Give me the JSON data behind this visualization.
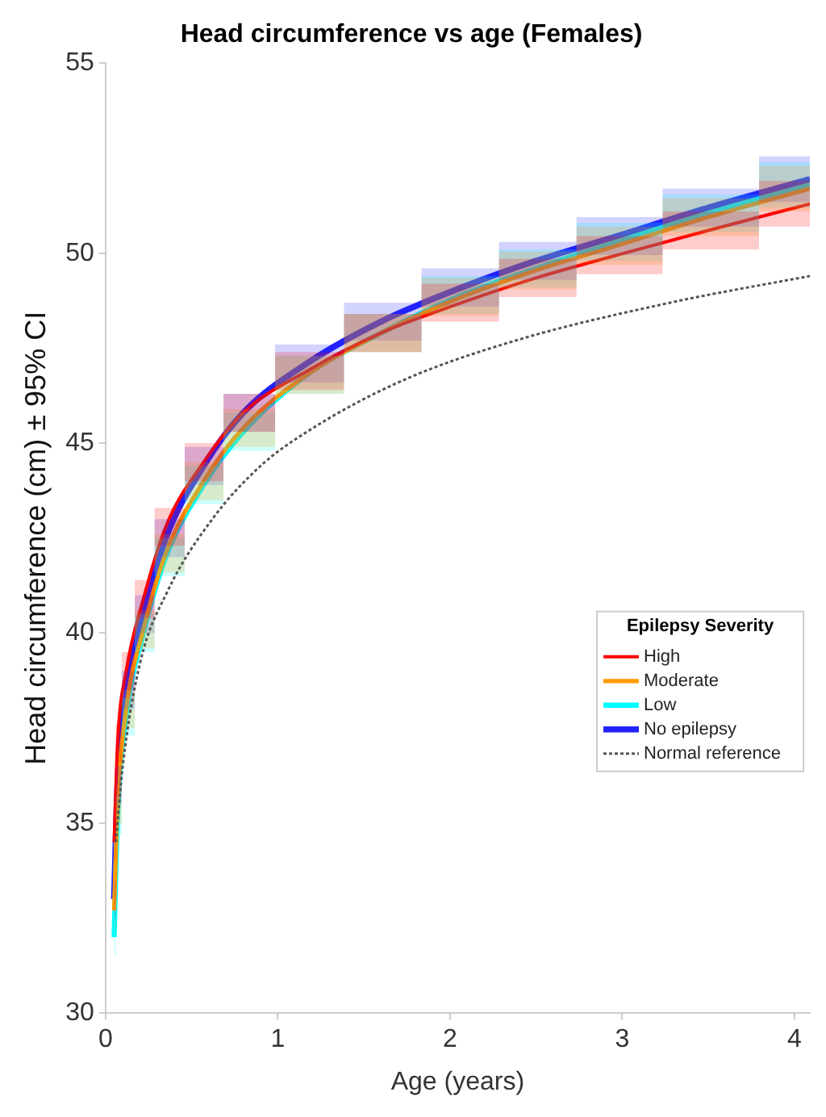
{
  "chart_data": {
    "type": "line",
    "title": "Head circumference vs age (Females)",
    "xlabel": "Age (years)",
    "ylabel": "Head circumference (cm) ± 95% CI",
    "legend_title": "Epilepsy Severity",
    "legend": "right",
    "grid": false,
    "marker": "none",
    "xlim": [
      0,
      4.09
    ],
    "xticks": [
      0,
      1,
      2,
      3,
      4
    ],
    "ylim": [
      30,
      55
    ],
    "yticks": [
      30,
      35,
      40,
      45,
      50,
      55
    ],
    "series": [
      {
        "name": "High",
        "color": "#ff0000",
        "line_style": "solid",
        "x": [
          0.05,
          0.07,
          0.12,
          0.22,
          0.35,
          0.57,
          0.8,
          1.17,
          1.6,
          2.07,
          2.5,
          2.97,
          3.5,
          4.09
        ],
        "values": [
          34.5,
          37.1,
          39,
          40.9,
          42.8,
          44.5,
          45.8,
          46.9,
          47.9,
          48.7,
          49.35,
          49.95,
          50.6,
          51.3
        ],
        "lower": [
          34,
          36.6,
          38.5,
          40.4,
          42.3,
          44,
          45.3,
          46.4,
          47.4,
          48.2,
          48.85,
          49.45,
          50.1,
          50.7
        ],
        "upper": [
          35,
          37.6,
          39.5,
          41.4,
          43.3,
          45,
          46.3,
          47.4,
          48.4,
          49.2,
          49.85,
          50.45,
          51.1,
          51.9
        ]
      },
      {
        "name": "Moderate",
        "color": "#ff9900",
        "line_style": "solid",
        "x": [
          0.05,
          0.07,
          0.12,
          0.22,
          0.35,
          0.57,
          0.8,
          1.17,
          1.6,
          2.07,
          2.5,
          2.97,
          3.5,
          4.09
        ],
        "values": [
          32.7,
          35.5,
          38,
          40.1,
          42.1,
          44,
          45.4,
          46.8,
          47.9,
          48.85,
          49.55,
          50.2,
          50.95,
          51.7
        ],
        "lower": [
          32.2,
          35,
          37.5,
          39.6,
          41.6,
          43.5,
          44.9,
          46.3,
          47.4,
          48.35,
          49.05,
          49.7,
          50.45,
          51.1
        ],
        "upper": [
          33.2,
          36,
          38.5,
          40.6,
          42.6,
          44.5,
          45.9,
          47.3,
          48.4,
          49.35,
          50.05,
          50.7,
          51.45,
          52.3
        ]
      },
      {
        "name": "Low",
        "color": "#00ffff",
        "line_style": "solid",
        "x": [
          0.05,
          0.07,
          0.12,
          0.22,
          0.35,
          0.57,
          0.8,
          1.17,
          1.6,
          2.07,
          2.5,
          2.97,
          3.5,
          4.09
        ],
        "values": [
          32,
          35.2,
          37.8,
          40,
          42,
          43.9,
          45.3,
          46.8,
          47.9,
          48.9,
          49.6,
          50.3,
          51.05,
          51.8
        ],
        "lower": [
          31.5,
          34.7,
          37.3,
          39.5,
          41.5,
          43.4,
          44.8,
          46.3,
          47.4,
          48.4,
          49.1,
          49.8,
          50.55,
          51.2
        ],
        "upper": [
          32.5,
          35.7,
          38.3,
          40.5,
          42.5,
          44.4,
          45.8,
          47.3,
          48.4,
          49.4,
          50.1,
          50.8,
          51.55,
          52.4
        ]
      },
      {
        "name": "No epilepsy",
        "color": "#2222ff",
        "line_style": "solid",
        "x": [
          0.05,
          0.07,
          0.12,
          0.22,
          0.35,
          0.57,
          0.8,
          1.17,
          1.6,
          2.07,
          2.5,
          2.97,
          3.5,
          4.09
        ],
        "values": [
          33,
          36,
          38.5,
          40.5,
          42.5,
          44.4,
          45.8,
          47.1,
          48.2,
          49.1,
          49.8,
          50.45,
          51.2,
          51.95
        ],
        "lower": [
          32.5,
          35.5,
          38,
          40,
          42,
          43.9,
          45.3,
          46.6,
          47.7,
          48.6,
          49.3,
          49.95,
          50.7,
          51.35
        ],
        "upper": [
          33.5,
          36.5,
          39,
          41,
          43,
          44.9,
          46.3,
          47.6,
          48.7,
          49.6,
          50.3,
          50.95,
          51.7,
          52.55
        ]
      },
      {
        "name": "Normal reference",
        "color": "#555555",
        "line_style": "dotted",
        "x": [
          0.06,
          0.1,
          0.2,
          0.36,
          0.62,
          0.9,
          1.17,
          1.7,
          2.38,
          3.28,
          4.09
        ],
        "values": [
          34.5,
          36.5,
          39.2,
          41.1,
          43,
          44.4,
          45.3,
          46.6,
          47.7,
          48.7,
          49.4
        ]
      }
    ]
  }
}
